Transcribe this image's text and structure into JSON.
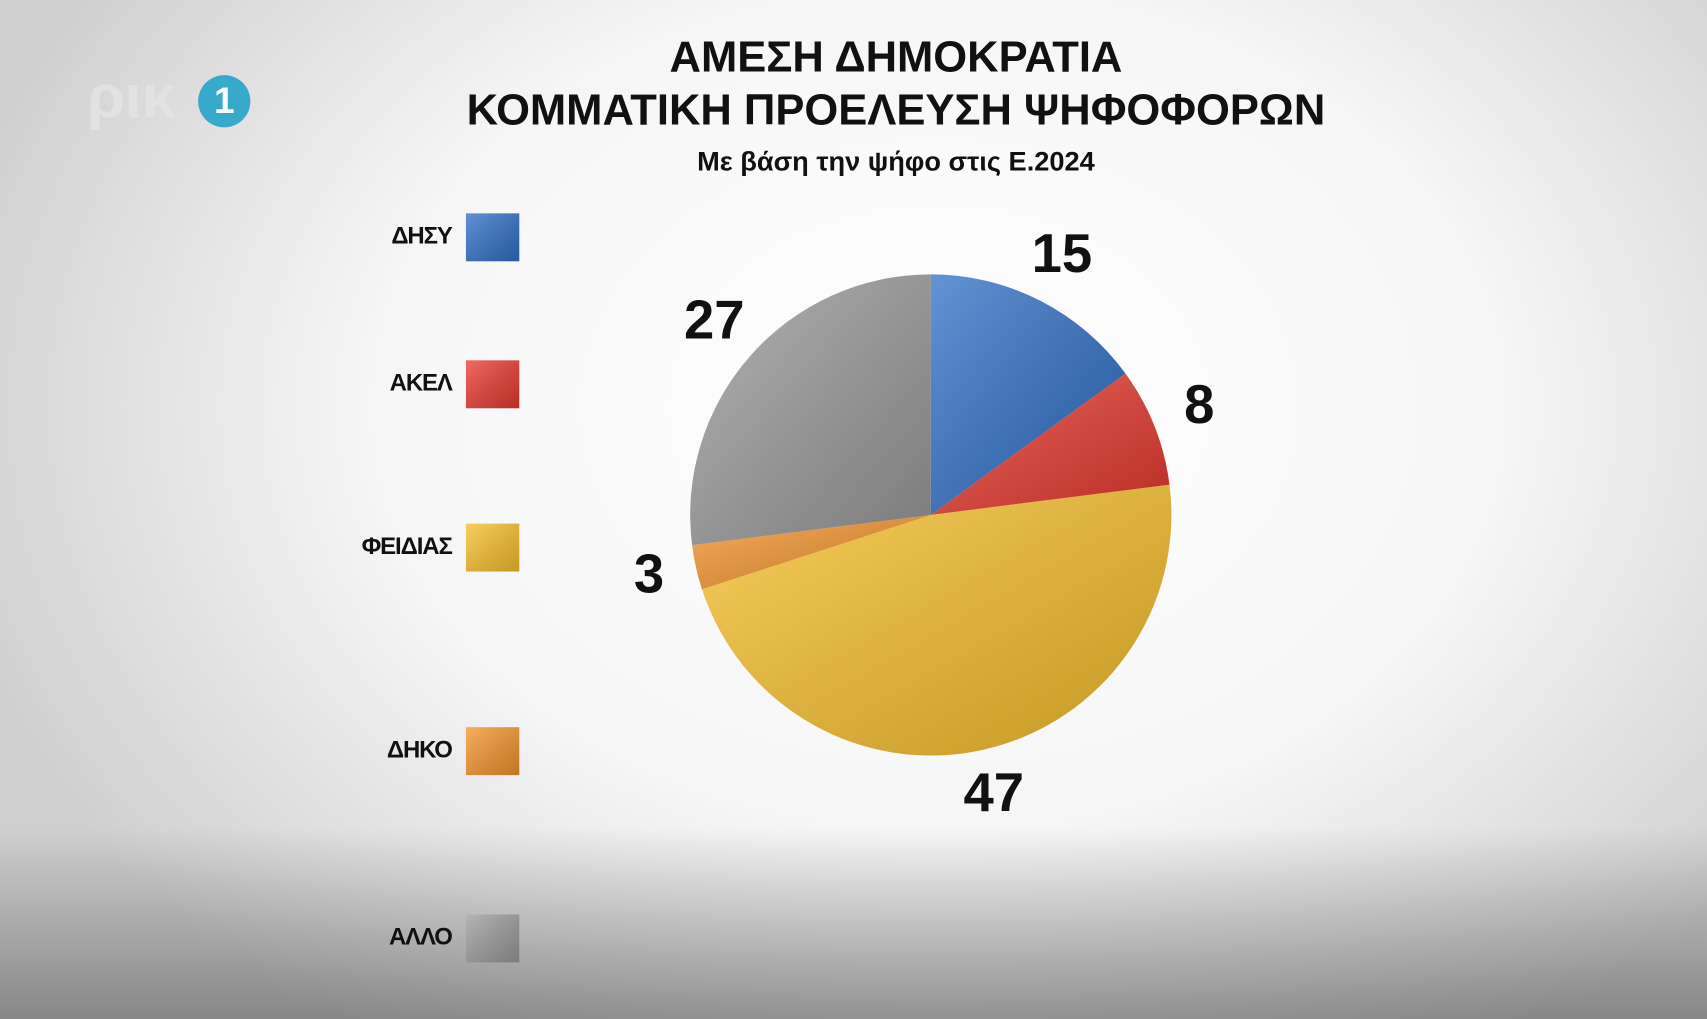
{
  "logo": {
    "text": "ρικ",
    "number": "1"
  },
  "chart_data": {
    "type": "pie",
    "title": "ΑΜΕΣΗ ΔΗΜΟΚΡΑΤΙΑ",
    "subtitle": "ΚΟΜΜΑΤΙΚΗ ΠΡΟΕΛΕΥΣΗ ΨΗΦΟΦΟΡΩΝ",
    "note": "Με βάση την ψήφο στις Ε.2024",
    "categories": [
      "ΔΗΣΥ",
      "ΑΚΕΛ",
      "ΦΕΙΔΙΑΣ",
      "ΔΗΚΟ",
      "ΑΛΛΟ"
    ],
    "values": [
      15,
      8,
      47,
      3,
      27
    ],
    "colors": [
      "#2f6fc6",
      "#e83a2f",
      "#f7c02c",
      "#f3952c",
      "#9c9c9c"
    ],
    "legend": "left"
  }
}
